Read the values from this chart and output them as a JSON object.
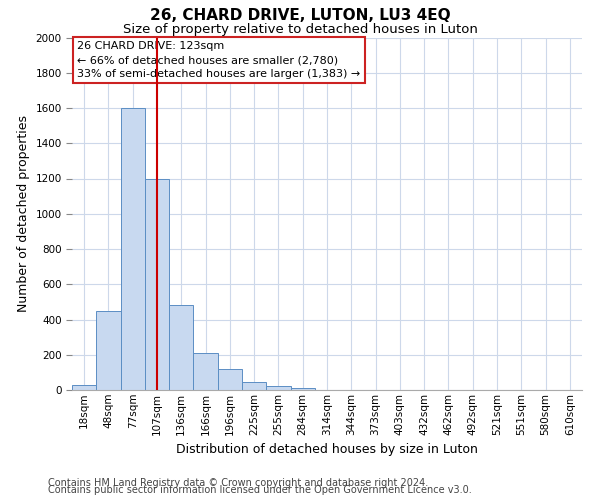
{
  "title_line1": "26, CHARD DRIVE, LUTON, LU3 4EQ",
  "title_line2": "Size of property relative to detached houses in Luton",
  "xlabel": "Distribution of detached houses by size in Luton",
  "ylabel": "Number of detached properties",
  "bar_labels": [
    "18sqm",
    "48sqm",
    "77sqm",
    "107sqm",
    "136sqm",
    "166sqm",
    "196sqm",
    "225sqm",
    "255sqm",
    "284sqm",
    "314sqm",
    "344sqm",
    "373sqm",
    "403sqm",
    "432sqm",
    "462sqm",
    "492sqm",
    "521sqm",
    "551sqm",
    "580sqm",
    "610sqm"
  ],
  "bar_values": [
    30,
    450,
    1600,
    1200,
    480,
    210,
    120,
    45,
    20,
    10,
    0,
    0,
    0,
    0,
    0,
    0,
    0,
    0,
    0,
    0,
    0
  ],
  "bar_color": "#c8d9f0",
  "bar_edge_color": "#5b8ec4",
  "ylim": [
    0,
    2000
  ],
  "yticks": [
    0,
    200,
    400,
    600,
    800,
    1000,
    1200,
    1400,
    1600,
    1800,
    2000
  ],
  "red_line_x": 3.5,
  "annotation_title": "26 CHARD DRIVE: 123sqm",
  "annotation_line1": "← 66% of detached houses are smaller (2,780)",
  "annotation_line2": "33% of semi-detached houses are larger (1,383) →",
  "footer_line1": "Contains HM Land Registry data © Crown copyright and database right 2024.",
  "footer_line2": "Contains public sector information licensed under the Open Government Licence v3.0.",
  "bg_color": "#ffffff",
  "grid_color": "#cdd8ea",
  "title_fontsize": 11,
  "subtitle_fontsize": 9.5,
  "axis_label_fontsize": 9,
  "tick_fontsize": 7.5,
  "footer_fontsize": 7,
  "annotation_fontsize": 8
}
